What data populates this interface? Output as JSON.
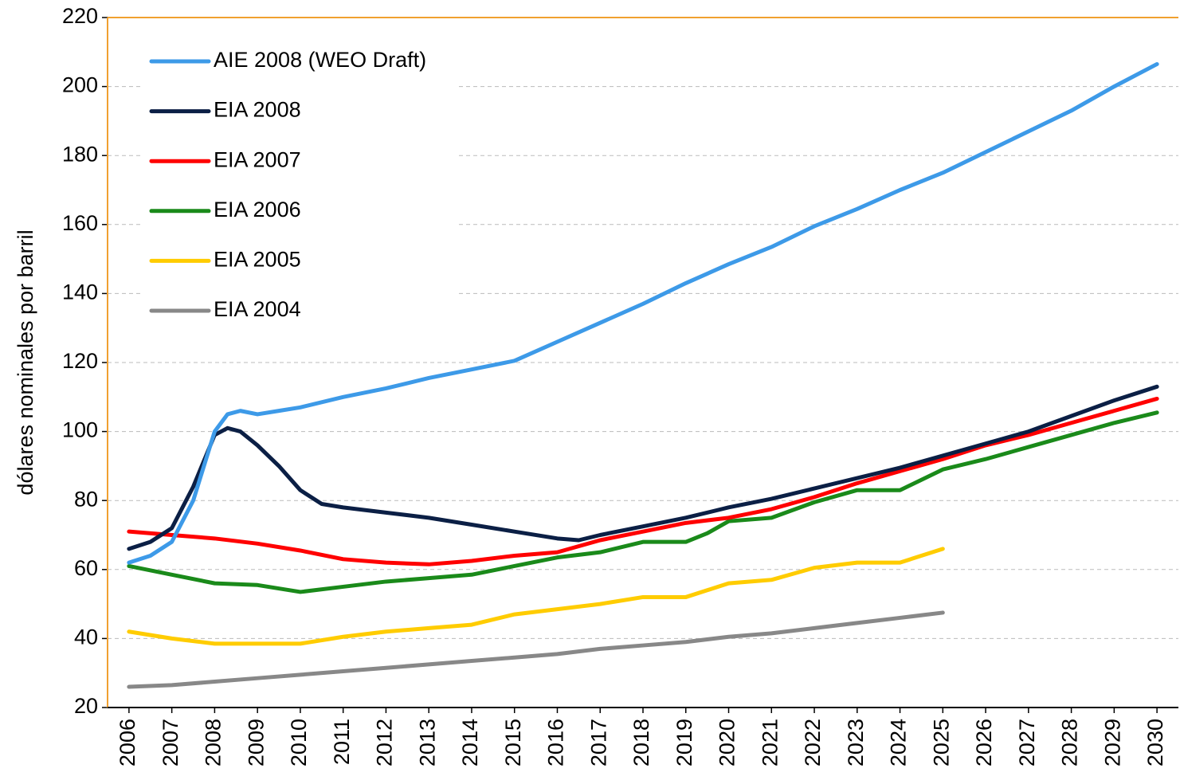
{
  "chart_data": {
    "type": "line",
    "y_label": "dólares nominales por barril",
    "xlim": [
      2005.5,
      2030.5
    ],
    "xticks": [
      2006,
      2007,
      2008,
      2009,
      2010,
      2011,
      2012,
      2013,
      2014,
      2015,
      2016,
      2017,
      2018,
      2019,
      2020,
      2021,
      2022,
      2023,
      2024,
      2025,
      2026,
      2027,
      2028,
      2029,
      2030
    ],
    "ylim": [
      20,
      220
    ],
    "yticks": [
      20,
      40,
      60,
      80,
      100,
      120,
      140,
      160,
      180,
      200,
      220
    ],
    "grid": true,
    "legend": "upper left",
    "series": [
      {
        "name": "AIE 2008 (WEO Draft)",
        "color": "#3d9ae8",
        "x": [
          2006,
          2006.5,
          2007,
          2007.5,
          2008,
          2008.3,
          2008.6,
          2009,
          2009.5,
          2010,
          2011,
          2012,
          2013,
          2014,
          2015,
          2016,
          2017,
          2018,
          2019,
          2020,
          2021,
          2022,
          2023,
          2024,
          2025,
          2026,
          2027,
          2028,
          2029,
          2030
        ],
        "values": [
          62,
          64,
          68,
          80,
          100,
          105,
          106,
          105,
          106,
          107,
          110,
          112.5,
          115.5,
          118,
          120.5,
          126,
          131.5,
          137,
          143,
          148.5,
          153.5,
          159.5,
          164.5,
          170,
          175,
          181,
          187,
          193,
          200,
          206.5
        ]
      },
      {
        "name": "EIA 2008",
        "color": "#0b1f45",
        "x": [
          2006,
          2006.5,
          2007,
          2007.5,
          2008,
          2008.3,
          2008.6,
          2009,
          2009.5,
          2010,
          2010.5,
          2011,
          2012,
          2013,
          2014,
          2015,
          2016,
          2016.5,
          2017,
          2018,
          2019,
          2020,
          2021,
          2022,
          2023,
          2024,
          2025,
          2026,
          2027,
          2028,
          2029,
          2030
        ],
        "values": [
          66,
          68,
          72,
          84,
          99,
          101,
          100,
          96,
          90,
          83,
          79,
          78,
          76.5,
          75,
          73,
          71,
          69,
          68.5,
          70,
          72.5,
          75,
          78,
          80.5,
          83.5,
          86.5,
          89.5,
          93,
          96.5,
          100,
          104.5,
          109,
          113
        ]
      },
      {
        "name": "EIA 2007",
        "color": "#ff0000",
        "x": [
          2006,
          2007,
          2008,
          2009,
          2010,
          2011,
          2012,
          2013,
          2014,
          2015,
          2016,
          2017,
          2018,
          2019,
          2020,
          2021,
          2022,
          2023,
          2024,
          2025,
          2026,
          2027,
          2028,
          2029,
          2030
        ],
        "values": [
          71,
          70,
          69,
          67.5,
          65.5,
          63,
          62,
          61.5,
          62.5,
          64,
          65,
          68.5,
          71,
          73.5,
          75,
          77.5,
          81,
          85,
          88.5,
          92,
          96,
          99,
          102.5,
          106,
          109.5
        ]
      },
      {
        "name": "EIA 2006",
        "color": "#1a8a1a",
        "x": [
          2006,
          2007,
          2008,
          2009,
          2010,
          2011,
          2012,
          2013,
          2014,
          2015,
          2016,
          2017,
          2018,
          2019,
          2019.5,
          2020,
          2021,
          2022,
          2023,
          2023.5,
          2024,
          2024.5,
          2025,
          2026,
          2027,
          2028,
          2029,
          2030
        ],
        "values": [
          61,
          58.5,
          56,
          55.5,
          53.5,
          55,
          56.5,
          57.5,
          58.5,
          61,
          63.5,
          65,
          68,
          68,
          70.5,
          74,
          75,
          79.5,
          83,
          83,
          83,
          86,
          89,
          92,
          95.5,
          99,
          102.5,
          105.5
        ]
      },
      {
        "name": "EIA 2005",
        "color": "#ffcc00",
        "x": [
          2006,
          2007,
          2008,
          2009,
          2010,
          2011,
          2012,
          2013,
          2014,
          2015,
          2016,
          2017,
          2018,
          2019,
          2020,
          2021,
          2022,
          2023,
          2024,
          2025
        ],
        "values": [
          42,
          40,
          38.5,
          38.5,
          38.5,
          40.5,
          42,
          43,
          44,
          47,
          48.5,
          50,
          52,
          52,
          56,
          57,
          60.5,
          62,
          62,
          66
        ]
      },
      {
        "name": "EIA 2004",
        "color": "#888888",
        "x": [
          2006,
          2007,
          2008,
          2009,
          2010,
          2011,
          2012,
          2013,
          2014,
          2015,
          2016,
          2017,
          2018,
          2019,
          2020,
          2021,
          2022,
          2023,
          2024,
          2025
        ],
        "values": [
          26,
          26.5,
          27.5,
          28.5,
          29.5,
          30.5,
          31.5,
          32.5,
          33.5,
          34.5,
          35.5,
          37,
          38,
          39,
          40.5,
          41.5,
          43,
          44.5,
          46,
          47.5
        ]
      }
    ]
  }
}
